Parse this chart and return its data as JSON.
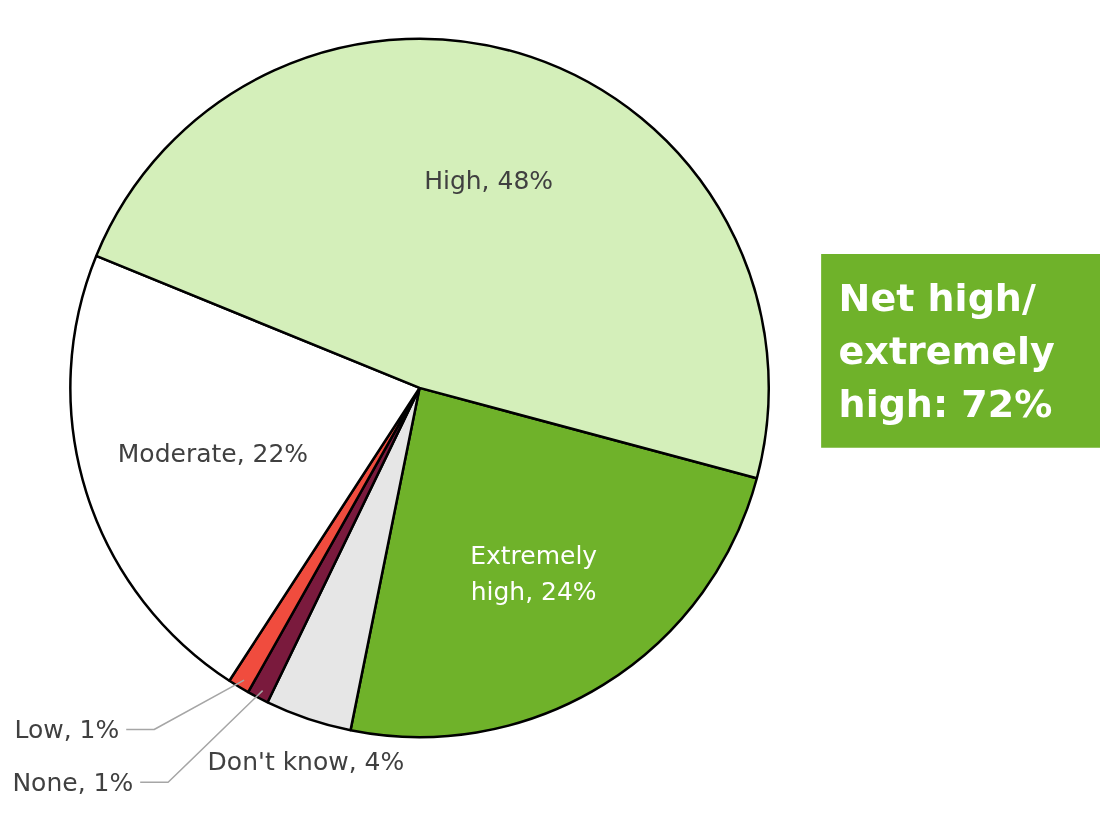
{
  "chart_data": {
    "type": "pie",
    "categories": [
      "Extremely high",
      "Don't know",
      "None",
      "Low",
      "Moderate",
      "High"
    ],
    "values": [
      24,
      4,
      1,
      1,
      22,
      48
    ],
    "colors": [
      "#6fb22a",
      "#e6e6e6",
      "#7a1a3d",
      "#f04c3e",
      "#ffffff",
      "#d4efba"
    ],
    "value_labels": [
      "24%",
      "4%",
      "1%",
      "1%",
      "22%",
      "48%"
    ],
    "annotations": [
      "Net high/\nextremely\nhigh: 72%"
    ]
  }
}
